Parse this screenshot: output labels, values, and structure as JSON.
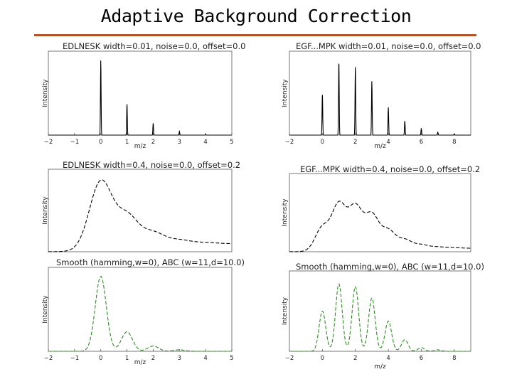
{
  "slide": {
    "title": "Adaptive Background Correction",
    "rule_color": "#b5532b"
  },
  "chart_data": [
    {
      "type": "line",
      "title": "EDLNESK width=0.01, noise=0.0, offset=0.0",
      "xlabel": "m/z",
      "ylabel": "Intensity",
      "xticks": [
        -2,
        -1,
        0,
        1,
        2,
        3,
        4,
        5
      ],
      "xtick_labels": [
        "−2",
        "−1",
        "0",
        "1",
        "2",
        "3",
        "4",
        "5"
      ],
      "xlim": [
        -2,
        5
      ],
      "ylim": [
        0,
        1.12
      ],
      "peak_width": 0.012,
      "baseline": 0.0,
      "color": "#000000",
      "dashed": false,
      "peaks": [
        {
          "x": 0,
          "y": 1.0
        },
        {
          "x": 1,
          "y": 0.42
        },
        {
          "x": 2,
          "y": 0.16
        },
        {
          "x": 3,
          "y": 0.05
        },
        {
          "x": 4,
          "y": 0.01
        }
      ]
    },
    {
      "type": "line",
      "title": "EGF...MPK width=0.01, noise=0.0, offset=0.0",
      "xlabel": "m/z",
      "ylabel": "Intensity",
      "xticks": [
        -2,
        0,
        2,
        4,
        6,
        8
      ],
      "xtick_labels": [
        "−2",
        "0",
        "2",
        "4",
        "6",
        "8"
      ],
      "xlim": [
        -2,
        9
      ],
      "ylim": [
        0,
        1.12
      ],
      "peak_width": 0.02,
      "baseline": 0.0,
      "color": "#000000",
      "dashed": false,
      "peaks": [
        {
          "x": 0,
          "y": 0.55
        },
        {
          "x": 1,
          "y": 0.99
        },
        {
          "x": 2,
          "y": 0.92
        },
        {
          "x": 3,
          "y": 0.72
        },
        {
          "x": 4,
          "y": 0.37
        },
        {
          "x": 5,
          "y": 0.19
        },
        {
          "x": 6,
          "y": 0.09
        },
        {
          "x": 7,
          "y": 0.04
        },
        {
          "x": 8,
          "y": 0.015
        }
      ]
    },
    {
      "type": "line",
      "title": "EDLNESK width=0.4, noise=0.0, offset=0.2",
      "xlabel": "",
      "ylabel": "Intensity",
      "xticks": [],
      "xtick_labels": [],
      "xlim": [
        -2,
        5
      ],
      "ylim": [
        0,
        1.12
      ],
      "peak_width": 0.42,
      "baseline": 0.11,
      "color": "#000000",
      "dashed": true,
      "peaks": [
        {
          "x": 0,
          "y": 0.85
        },
        {
          "x": 1,
          "y": 0.38
        },
        {
          "x": 2,
          "y": 0.15
        },
        {
          "x": 3,
          "y": 0.05
        },
        {
          "x": 4,
          "y": 0.015
        }
      ]
    },
    {
      "type": "line",
      "title": "EGF...MPK width=0.4, noise=0.0, offset=0.2",
      "xlabel": "",
      "ylabel": "Intensity",
      "xticks": [],
      "xtick_labels": [],
      "xlim": [
        -2,
        9
      ],
      "ylim": [
        0,
        1.12
      ],
      "peak_width": 0.42,
      "baseline": 0.05,
      "color": "#000000",
      "dashed": true,
      "peaks": [
        {
          "x": 0,
          "y": 0.3
        },
        {
          "x": 1,
          "y": 0.62
        },
        {
          "x": 2,
          "y": 0.58
        },
        {
          "x": 3,
          "y": 0.47
        },
        {
          "x": 4,
          "y": 0.25
        },
        {
          "x": 5,
          "y": 0.12
        },
        {
          "x": 6,
          "y": 0.05
        },
        {
          "x": 7,
          "y": 0.02
        },
        {
          "x": 8,
          "y": 0.008
        }
      ]
    },
    {
      "type": "line",
      "title": "Smooth (hamming,w=0), ABC (w=11,d=10.0)",
      "xlabel": "m/z",
      "ylabel": "Intensity",
      "xticks": [
        -2,
        -1,
        0,
        1,
        2,
        3,
        4,
        5
      ],
      "xtick_labels": [
        "−2",
        "−1",
        "0",
        "1",
        "2",
        "3",
        "4",
        "5"
      ],
      "xlim": [
        -2,
        5
      ],
      "ylim": [
        0,
        1.12
      ],
      "peak_width": 0.21,
      "baseline": 0.0,
      "color": "#2e8b22",
      "dashed": true,
      "peaks": [
        {
          "x": 0,
          "y": 1.0
        },
        {
          "x": 1,
          "y": 0.26
        },
        {
          "x": 2,
          "y": 0.07
        },
        {
          "x": 3,
          "y": 0.02
        }
      ]
    },
    {
      "type": "line",
      "title": "Smooth (hamming,w=0), ABC (w=11,d=10.0)",
      "xlabel": "m/z",
      "ylabel": "Intensity",
      "xticks": [
        -2,
        0,
        2,
        4,
        6,
        8
      ],
      "xtick_labels": [
        "−2",
        "0",
        "2",
        "4",
        "6",
        "8"
      ],
      "xlim": [
        -2,
        9
      ],
      "ylim": [
        0,
        1.12
      ],
      "peak_width": 0.2,
      "baseline": 0.0,
      "color": "#2e8b22",
      "dashed": true,
      "peaks": [
        {
          "x": 0,
          "y": 0.56
        },
        {
          "x": 1,
          "y": 0.94
        },
        {
          "x": 2,
          "y": 0.9
        },
        {
          "x": 3,
          "y": 0.74
        },
        {
          "x": 4,
          "y": 0.42
        },
        {
          "x": 5,
          "y": 0.16
        },
        {
          "x": 6,
          "y": 0.05
        },
        {
          "x": 7,
          "y": 0.02
        }
      ]
    }
  ]
}
